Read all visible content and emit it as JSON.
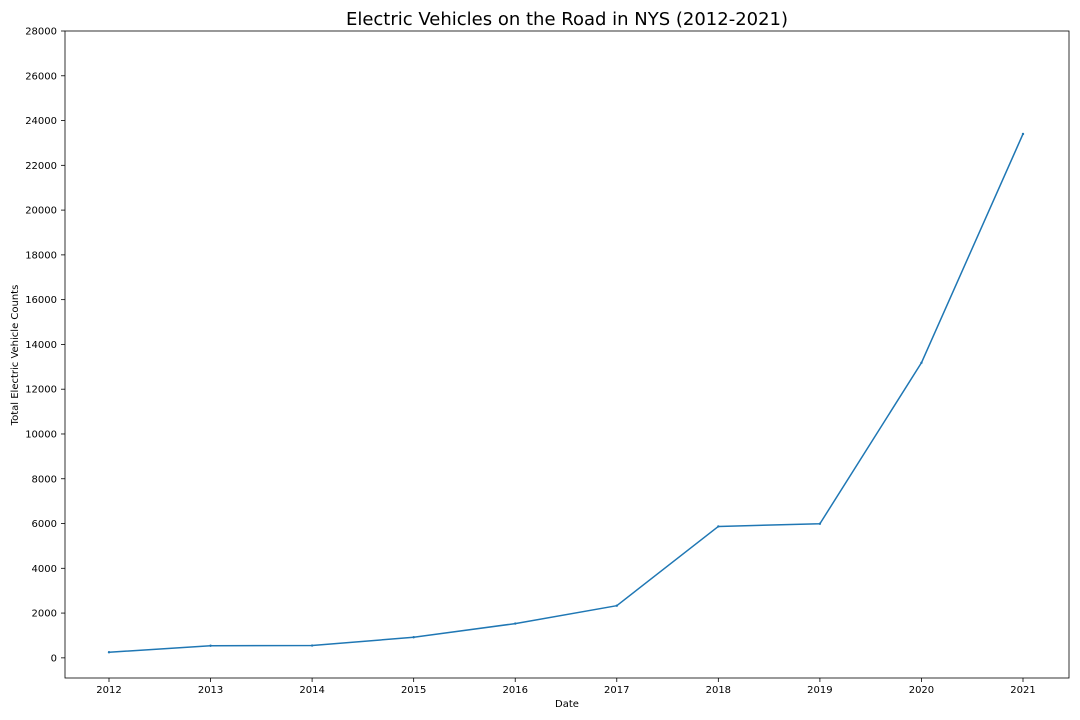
{
  "chart_data": {
    "type": "line",
    "title": "Electric Vehicles on the Road in NYS (2012-2021)",
    "xlabel": "Date",
    "ylabel": "Total Electric Vehicle Counts",
    "x": [
      "2012",
      "2013",
      "2014",
      "2015",
      "2016",
      "2017",
      "2018",
      "2019",
      "2020",
      "2021"
    ],
    "series": [
      {
        "color": "#1f77b4",
        "values": [
          250,
          540,
          550,
          920,
          1530,
          2330,
          5870,
          5990,
          13180,
          23400
        ]
      }
    ],
    "ylim": [
      -900,
      28000
    ],
    "yticks": [
      0,
      2000,
      4000,
      6000,
      8000,
      10000,
      12000,
      14000,
      16000,
      18000,
      20000,
      22000,
      24000,
      26000,
      28000
    ],
    "grid": false,
    "legend": "none"
  }
}
